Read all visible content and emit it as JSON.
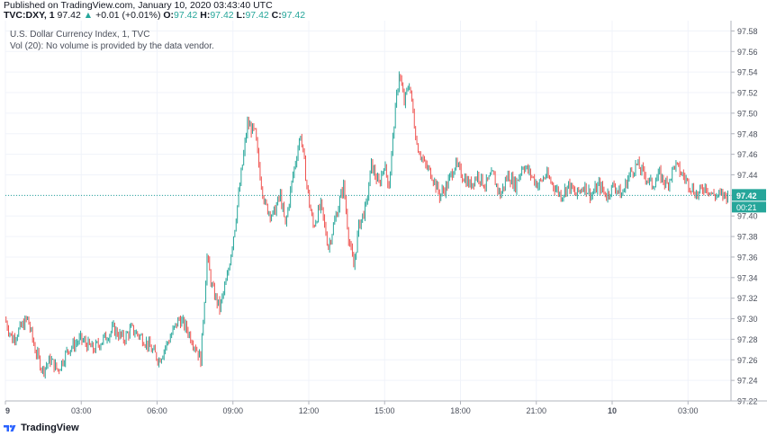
{
  "header": {
    "published": "Published on TradingView.com, January 10, 2020 03:43:40 UTC",
    "symbol": "TVC:DXY, 1",
    "last": "97.42",
    "arrow": "▲",
    "change": "+0.01 (+0.01%)",
    "o_label": "O:",
    "o": "97.42",
    "h_label": "H:",
    "h": "97.42",
    "l_label": "L:",
    "l": "97.42",
    "c_label": "C:",
    "c": "97.42"
  },
  "legend": {
    "title": "U.S. Dollar Currency Index, 1, TVC",
    "volume_note": "Vol (20): No volume is provided by the data vendor."
  },
  "footer": {
    "brand": "TradingView",
    "logo_icon": "tradingview-logo-icon"
  },
  "colors": {
    "up": "#26a69a",
    "down": "#ef5350",
    "grid": "#f0f3fa",
    "axis": "#b2b5be",
    "last_price": "#26a69a"
  },
  "chart_data": {
    "type": "candlestick",
    "title": "U.S. Dollar Currency Index, 1, TVC",
    "xlabel": "",
    "ylabel": "",
    "ylim": [
      97.22,
      97.59
    ],
    "y_ticks": [
      "97.58",
      "97.56",
      "97.54",
      "97.52",
      "97.50",
      "97.48",
      "97.46",
      "97.44",
      "97.42",
      "97.40",
      "97.38",
      "97.36",
      "97.34",
      "97.32",
      "97.30",
      "97.28",
      "97.26",
      "97.24",
      "97.22"
    ],
    "x_tick_labels": [
      "9",
      "03:00",
      "06:00",
      "09:00",
      "12:00",
      "15:00",
      "18:00",
      "21:00",
      "10",
      "03:00"
    ],
    "x_tick_hours": [
      0,
      3,
      6,
      9,
      12,
      15,
      18,
      21,
      24,
      27
    ],
    "x_range_hours": [
      0,
      28.7
    ],
    "last_price": "97.42",
    "countdown": "00:21",
    "path_hours": [
      0,
      0.3,
      0.6,
      0.9,
      1.2,
      1.5,
      1.8,
      2.1,
      2.5,
      3.0,
      3.5,
      3.9,
      4.3,
      4.7,
      5.0,
      5.5,
      5.8,
      6.1,
      6.5,
      6.9,
      7.2,
      7.4,
      7.6,
      7.75,
      7.85,
      8.0,
      8.2,
      8.5,
      8.8,
      9.1,
      9.4,
      9.6,
      9.9,
      10.1,
      10.3,
      10.6,
      10.9,
      11.1,
      11.4,
      11.7,
      12.0,
      12.2,
      12.5,
      12.8,
      13.1,
      13.4,
      13.6,
      13.8,
      14.0,
      14.3,
      14.5,
      14.8,
      15.0,
      15.2,
      15.4,
      15.6,
      15.8,
      16.0,
      16.3,
      16.6,
      16.9,
      17.2,
      17.5,
      17.8,
      18.1,
      18.4,
      18.7,
      19.0,
      19.3,
      19.6,
      19.9,
      20.2,
      20.5,
      20.8,
      21.1,
      21.4,
      21.7,
      22.0,
      22.3,
      22.6,
      22.9,
      23.2,
      23.5,
      23.8,
      24.1,
      24.4,
      24.7,
      25.0,
      25.3,
      25.6,
      25.9,
      26.2,
      26.5,
      26.8,
      27.1,
      27.4,
      27.7,
      28.0,
      28.3,
      28.6
    ],
    "path_prices": [
      97.3,
      97.28,
      97.29,
      97.3,
      97.27,
      97.25,
      97.26,
      97.25,
      97.27,
      97.28,
      97.27,
      97.28,
      97.29,
      97.28,
      97.29,
      97.28,
      97.27,
      97.26,
      97.28,
      97.3,
      97.29,
      97.28,
      97.27,
      97.26,
      97.3,
      97.36,
      97.33,
      97.31,
      97.34,
      97.39,
      97.45,
      97.49,
      97.48,
      97.44,
      97.41,
      97.4,
      97.42,
      97.39,
      97.44,
      97.48,
      97.42,
      97.39,
      97.41,
      97.37,
      97.4,
      97.43,
      97.38,
      97.35,
      97.39,
      97.41,
      97.45,
      97.43,
      97.45,
      97.43,
      97.49,
      97.54,
      97.51,
      97.53,
      97.47,
      97.45,
      97.44,
      97.42,
      97.43,
      97.45,
      97.44,
      97.43,
      97.44,
      97.43,
      97.44,
      97.42,
      97.44,
      97.43,
      97.45,
      97.44,
      97.43,
      97.44,
      97.43,
      97.42,
      97.43,
      97.42,
      97.43,
      97.42,
      97.43,
      97.42,
      97.43,
      97.42,
      97.44,
      97.45,
      97.44,
      97.43,
      97.44,
      97.43,
      97.45,
      97.44,
      97.43,
      97.42,
      97.43,
      97.42,
      97.42,
      97.42
    ]
  }
}
